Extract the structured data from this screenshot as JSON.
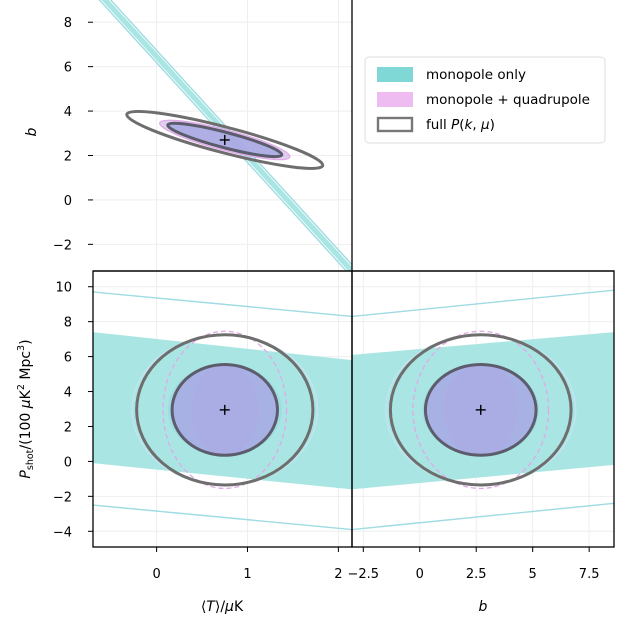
{
  "chart_data": [
    {
      "type": "contour",
      "panel": "top-left",
      "xlim": [
        -0.7,
        2.15
      ],
      "ylim": [
        -3.2,
        9.0
      ],
      "yticks": [
        -2,
        0,
        2,
        4,
        6,
        8
      ],
      "ylabel": "b",
      "fiducial": {
        "x": 0.75,
        "y": 2.7
      },
      "band": {
        "series": "monopole only",
        "y_at_xmin": 9.6,
        "y_at_xmax": -3.2,
        "halfwidth_inner": 0.18,
        "halfwidth_outer": 0.28
      },
      "ellipses": [
        {
          "series": "monopole + quadrupole",
          "level": "inner",
          "cx": 0.75,
          "cy": 2.7,
          "rx": 1.05,
          "ry": 0.16,
          "angle_deg": -47
        },
        {
          "series": "full P(k, μ)",
          "level": "inner",
          "cx": 0.75,
          "cy": 2.7,
          "rx": 0.92,
          "ry": 0.12,
          "angle_deg": -47
        },
        {
          "series": "full P(k, μ)",
          "level": "outer",
          "cx": 0.75,
          "cy": 2.7,
          "rx": 1.58,
          "ry": 0.2,
          "angle_deg": -47
        }
      ]
    },
    {
      "type": "contour",
      "panel": "bottom-left",
      "xlim": [
        -0.7,
        2.15
      ],
      "ylim": [
        -4.9,
        10.9
      ],
      "xticks": [
        0,
        1,
        2
      ],
      "yticks": [
        -4,
        -2,
        0,
        2,
        4,
        6,
        8,
        10
      ],
      "xlabel": "⟨T⟩/μK",
      "ylabel": "P_shot/(100 μK² Mpc³)",
      "fiducial": {
        "x": 0.75,
        "y": 2.95
      },
      "band": {
        "series": "monopole only",
        "upper": [
          [
            -0.7,
            7.4
          ],
          [
            2.15,
            5.8
          ]
        ],
        "lower": [
          [
            -0.7,
            -0.1
          ],
          [
            2.15,
            -1.6
          ]
        ],
        "outer_upper": [
          [
            -0.7,
            9.7
          ],
          [
            2.15,
            8.3
          ]
        ],
        "outer_lower": [
          [
            -0.7,
            -2.5
          ],
          [
            2.15,
            -3.9
          ]
        ]
      },
      "ellipses": [
        {
          "series": "monopole only",
          "level": "inner",
          "cx": 0.75,
          "cy": 2.95,
          "rx": 0.62,
          "ry": 2.6
        },
        {
          "series": "monopole only",
          "level": "outer",
          "cx": 0.75,
          "cy": 2.95,
          "rx": 1.02,
          "ry": 4.3
        },
        {
          "series": "monopole + quadrupole",
          "level": "inner",
          "cx": 0.75,
          "cy": 2.95,
          "rx": 0.36,
          "ry": 2.6
        },
        {
          "series": "monopole + quadrupole",
          "level": "outer",
          "cx": 0.75,
          "cy": 2.95,
          "rx": 0.68,
          "ry": 4.5
        },
        {
          "series": "full P(k, μ)",
          "level": "inner",
          "cx": 0.75,
          "cy": 2.95,
          "rx": 0.58,
          "ry": 2.6
        },
        {
          "series": "full P(k, μ)",
          "level": "outer",
          "cx": 0.75,
          "cy": 2.95,
          "rx": 0.97,
          "ry": 4.3
        }
      ]
    },
    {
      "type": "contour",
      "panel": "bottom-right",
      "xlim": [
        -3.0,
        8.6
      ],
      "ylim": [
        -4.9,
        10.9
      ],
      "xticks": [
        -2.5,
        0.0,
        2.5,
        5.0,
        7.5
      ],
      "xlabel": "b",
      "fiducial": {
        "x": 2.7,
        "y": 2.95
      },
      "band": {
        "series": "monopole only",
        "upper": [
          [
            -3.0,
            6.1
          ],
          [
            8.6,
            7.4
          ]
        ],
        "lower": [
          [
            -3.0,
            -1.6
          ],
          [
            8.6,
            -0.2
          ]
        ],
        "outer_upper": [
          [
            -3.0,
            8.3
          ],
          [
            8.6,
            9.8
          ]
        ],
        "outer_lower": [
          [
            -3.0,
            -3.9
          ],
          [
            8.6,
            -2.4
          ]
        ]
      },
      "ellipses": [
        {
          "series": "monopole only",
          "level": "inner",
          "cx": 2.7,
          "cy": 2.95,
          "rx": 2.55,
          "ry": 2.6
        },
        {
          "series": "monopole only",
          "level": "outer",
          "cx": 2.7,
          "cy": 2.95,
          "rx": 4.2,
          "ry": 4.3
        },
        {
          "series": "monopole + quadrupole",
          "level": "inner",
          "cx": 2.7,
          "cy": 2.95,
          "rx": 1.6,
          "ry": 2.6
        },
        {
          "series": "monopole + quadrupole",
          "level": "outer",
          "cx": 2.7,
          "cy": 2.95,
          "rx": 3.0,
          "ry": 4.5
        },
        {
          "series": "full P(k, μ)",
          "level": "inner",
          "cx": 2.7,
          "cy": 2.95,
          "rx": 2.45,
          "ry": 2.6
        },
        {
          "series": "full P(k, μ)",
          "level": "outer",
          "cx": 2.7,
          "cy": 2.95,
          "rx": 4.0,
          "ry": 4.3
        }
      ]
    }
  ],
  "legend": {
    "placement": "upper-right-empty-panel",
    "items": [
      {
        "label": "monopole only",
        "style": "filled",
        "color": "#7fd8d6"
      },
      {
        "label": "monopole + quadrupole",
        "style": "filled",
        "color": "#eebcf0"
      },
      {
        "label": "full P(k, μ)",
        "style": "outline",
        "color": "#777777"
      }
    ]
  },
  "colors": {
    "monopole_fill": "#a9e6e3",
    "monopole_line": "#9edbe2",
    "quad_fill": "#c6a8e6",
    "quad_line": "#e2a8e8",
    "full_line": "#6e6e6e",
    "full_inner_fill": "#a7a9e3",
    "grid": "#eeeeee"
  }
}
